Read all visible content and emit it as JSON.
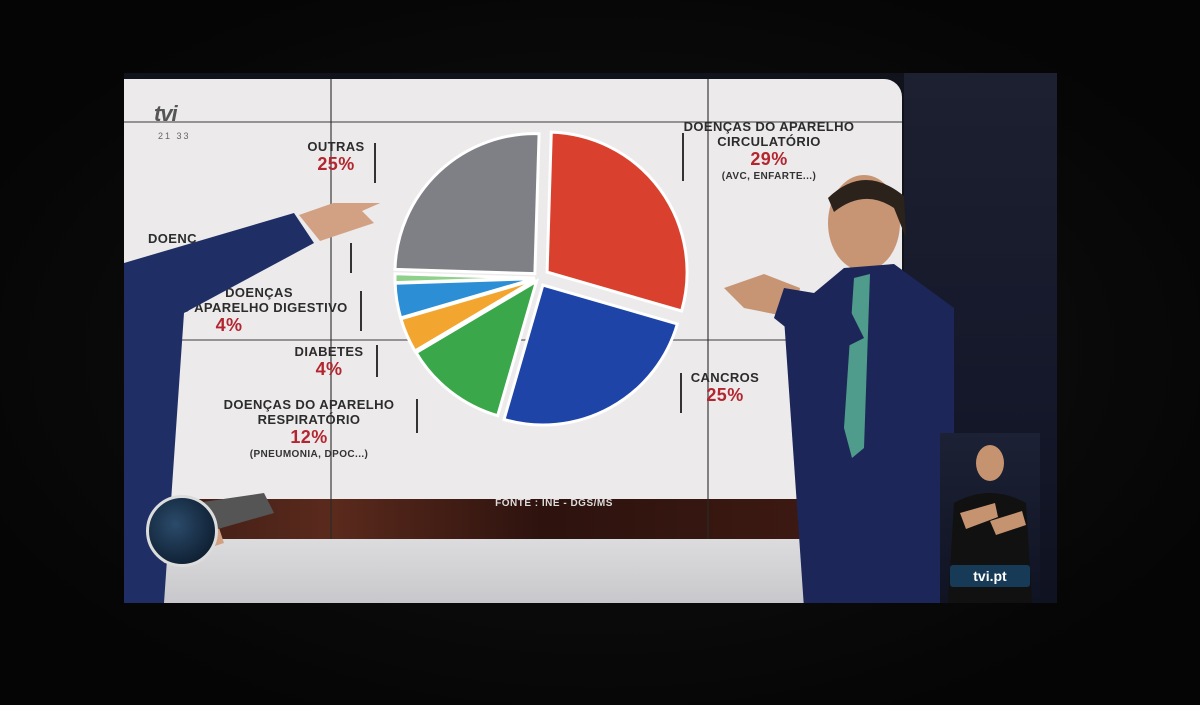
{
  "chart_data": {
    "type": "pie",
    "title": "",
    "source": "FONTE : INE - DGS/MS",
    "slices": [
      {
        "label": "DOENÇAS DO APARELHO CIRCULATÓRIO",
        "label_line1": "DOENÇAS DO APARELHO",
        "label_line2": "CIRCULATÓRIO",
        "value": 29,
        "value_text": "29%",
        "note": "(AVC, ENFARTE...)",
        "color": "#d9412e"
      },
      {
        "label": "CANCROS",
        "value": 25,
        "value_text": "25%",
        "color": "#1f44a8"
      },
      {
        "label": "DOENÇAS DO APARELHO RESPIRATÓRIO",
        "label_line1": "DOENÇAS DO APARELHO",
        "label_line2": "RESPIRATÓRIO",
        "value": 12,
        "value_text": "12%",
        "note": "(PNEUMONIA, DPOC...)",
        "color": "#3aa74a"
      },
      {
        "label": "DIABETES",
        "value": 4,
        "value_text": "4%",
        "color": "#f2a630"
      },
      {
        "label": "DOENÇAS DO APARELHO DIGESTIVO",
        "label_line1": "DOENÇAS",
        "label_line2": "DO APARELHO DIGESTIVO",
        "value": 4,
        "value_text": "4%",
        "color": "#2c8fd6"
      },
      {
        "label": "DOENÇ...AS",
        "value": 1,
        "color": "#8fd18b"
      },
      {
        "label": "OUTRAS",
        "value": 25,
        "value_text": "25%",
        "color": "#7f7f86"
      }
    ],
    "partial_label": "DOENÇ          AS"
  },
  "broadcast": {
    "channel_logo": "tvi",
    "clock": "21 33",
    "website": "tvi.pt"
  }
}
